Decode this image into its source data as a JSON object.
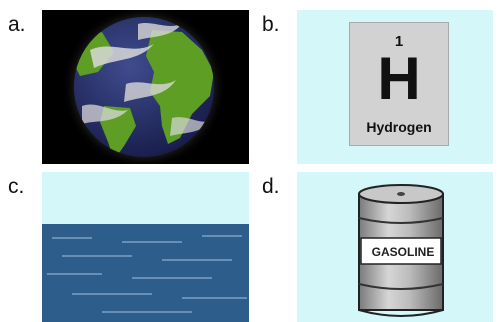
{
  "options": [
    {
      "label": "a.",
      "icon": "earth-icon"
    },
    {
      "label": "b.",
      "icon": "periodic-element-icon",
      "element": {
        "number": "1",
        "symbol": "H",
        "name": "Hydrogen"
      }
    },
    {
      "label": "c.",
      "icon": "ocean-water-icon"
    },
    {
      "label": "d.",
      "icon": "gasoline-barrel-icon",
      "barrel_text": "GASOLINE"
    }
  ],
  "colors": {
    "sky": "#d4f7f9",
    "water": "#2d5d8a",
    "land": "#6fba2c",
    "space": "#000000"
  }
}
